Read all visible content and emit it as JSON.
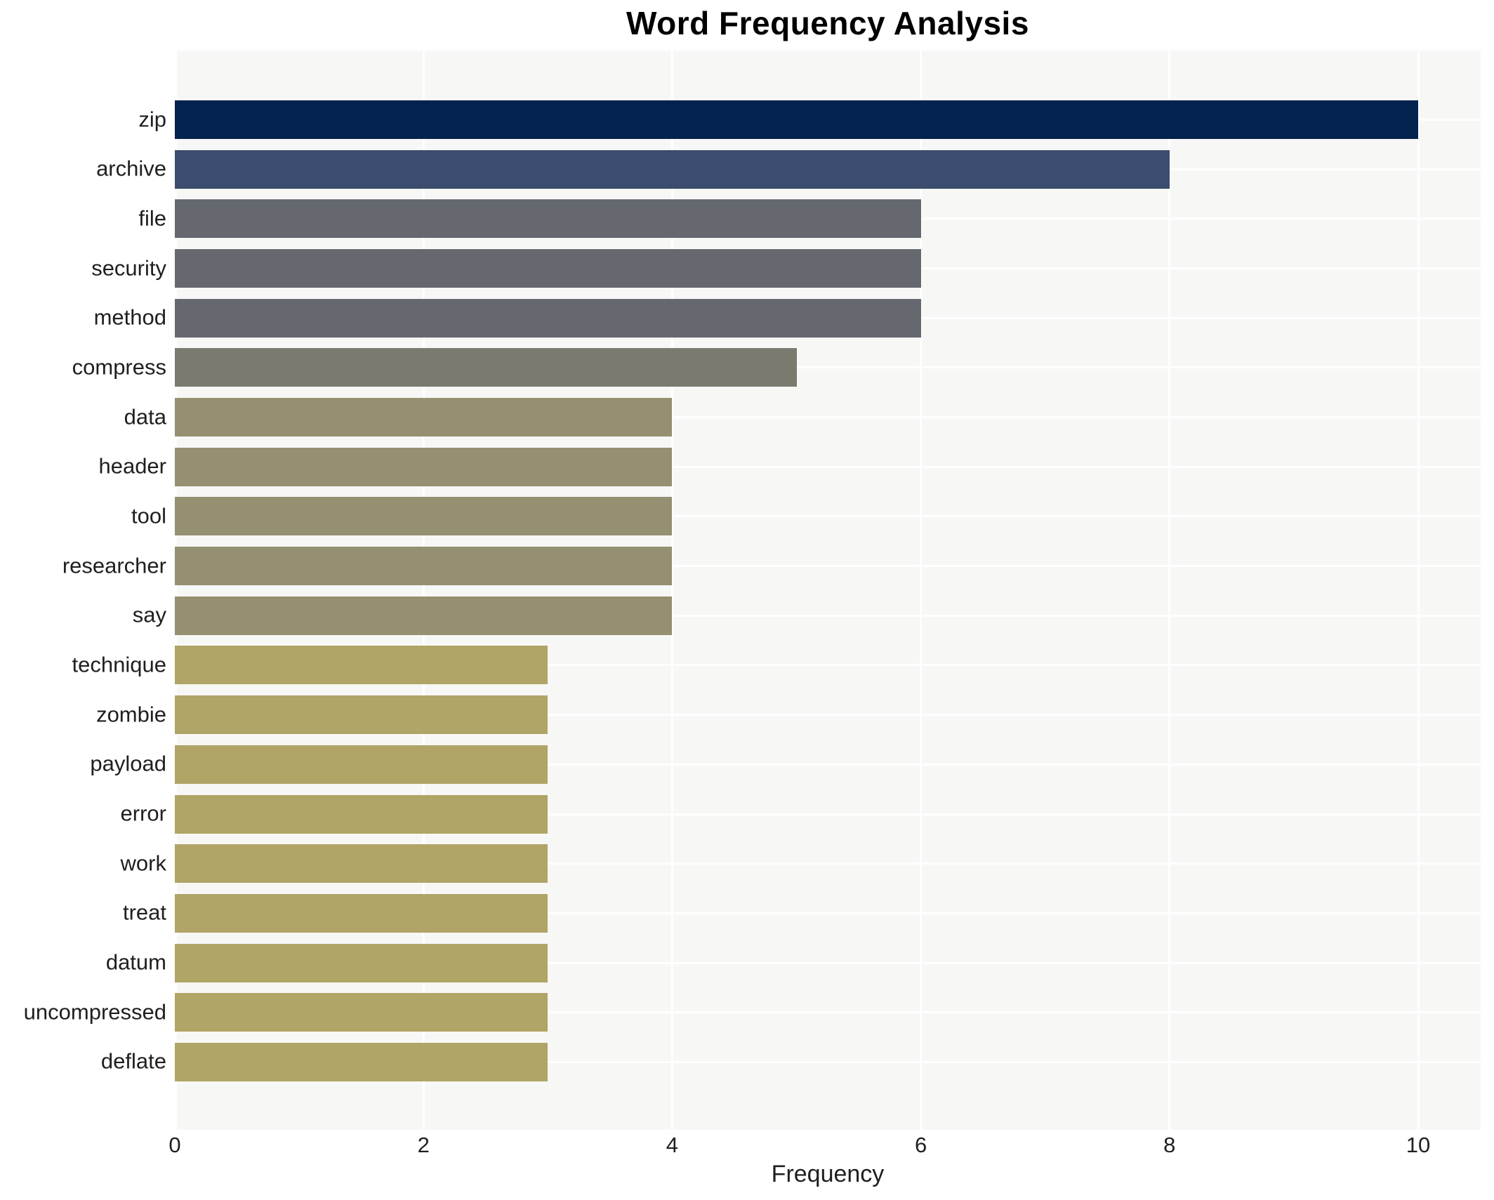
{
  "chart_data": {
    "type": "bar",
    "orientation": "horizontal",
    "title": "Word Frequency Analysis",
    "xlabel": "Frequency",
    "ylabel": "",
    "xlim": [
      0,
      10
    ],
    "xticks": [
      0,
      2,
      4,
      6,
      8,
      10
    ],
    "grid": true,
    "legend": "none",
    "plot_background": "#f7f7f6",
    "gridline_color": "#ffffff",
    "categories": [
      "zip",
      "archive",
      "file",
      "security",
      "method",
      "compress",
      "data",
      "header",
      "tool",
      "researcher",
      "say",
      "technique",
      "zombie",
      "payload",
      "error",
      "work",
      "treat",
      "datum",
      "uncompressed",
      "deflate"
    ],
    "values": [
      10,
      8,
      6,
      6,
      6,
      5,
      4,
      4,
      4,
      4,
      4,
      3,
      3,
      3,
      3,
      3,
      3,
      3,
      3,
      3
    ],
    "bar_colors": [
      "#03224e",
      "#3c4c6e",
      "#65696f",
      "#65696f",
      "#65696f",
      "#7b7a6f",
      "#949071",
      "#949071",
      "#949071",
      "#949071",
      "#949071",
      "#b0a466",
      "#b0a466",
      "#b0a466",
      "#b0a466",
      "#b0a466",
      "#b0a466",
      "#b0a466",
      "#b0a466",
      "#b0a466"
    ]
  }
}
